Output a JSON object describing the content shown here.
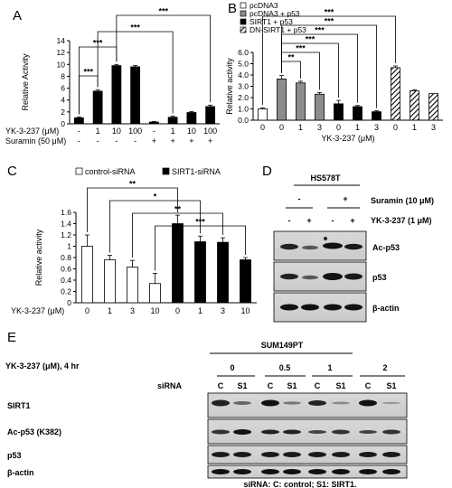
{
  "panels": {
    "A": {
      "letter": "A",
      "chart_data": {
        "type": "bar",
        "ylabel": "Relative Activity",
        "ylim": [
          0,
          14
        ],
        "yticks": [
          0,
          2,
          4,
          6,
          8,
          10,
          12,
          14
        ],
        "rows": [
          {
            "label": "YK-3-237 (μM)",
            "values": [
              "-",
              "1",
              "10",
              "100",
              "-",
              "1",
              "10",
              "100"
            ]
          },
          {
            "label": "Suramin (50 μM)",
            "values": [
              "-",
              "-",
              "-",
              "-",
              "+",
              "+",
              "+",
              "+"
            ]
          }
        ],
        "values": [
          1.0,
          5.5,
          9.8,
          9.6,
          0.3,
          1.1,
          1.9,
          2.9
        ],
        "errors": [
          0.15,
          0.25,
          0.2,
          0.2,
          0.08,
          0.2,
          0.15,
          0.25
        ],
        "significance": [
          "***",
          "***",
          "***",
          "***"
        ]
      }
    },
    "B": {
      "letter": "B",
      "chart_data": {
        "type": "bar",
        "ylabel": "Relative activity",
        "xlabel": "YK-3-237 (μM)",
        "ylim": [
          0,
          6.0
        ],
        "yticks": [
          "0.0",
          "1.0",
          "2.0",
          "3.0",
          "4.0",
          "5.0",
          "6.0"
        ],
        "categories": [
          "0",
          "0",
          "1",
          "3",
          "0",
          "1",
          "3",
          "0",
          "1",
          "3"
        ],
        "series": [
          {
            "name": "pcDNA3",
            "style": "white"
          },
          {
            "name": "pcDNA3 + p53",
            "style": "gray"
          },
          {
            "name": "SIRT1 + p53",
            "style": "black"
          },
          {
            "name": "DN-SIRT1 + p53",
            "style": "hatch"
          }
        ],
        "bar_series": [
          0,
          1,
          1,
          1,
          2,
          2,
          2,
          3,
          3,
          3
        ],
        "values": [
          1.0,
          3.65,
          3.3,
          2.3,
          1.45,
          1.2,
          0.75,
          4.65,
          2.6,
          2.35
        ],
        "errors": [
          0.1,
          0.3,
          0.15,
          0.15,
          0.3,
          0.1,
          0.08,
          0.15,
          0.1,
          0.0
        ],
        "significance": [
          "***",
          "***",
          "***",
          "***",
          "***",
          "**",
          "***"
        ]
      }
    },
    "C": {
      "letter": "C",
      "chart_data": {
        "type": "bar",
        "ylabel": "Relative activity",
        "xlabel": "YK-3-237 (μM)",
        "ylim": [
          0,
          1.6
        ],
        "yticks": [
          "0",
          "0.2",
          "0.4",
          "0.6",
          "0.8",
          "1",
          "1.2",
          "1.4",
          "1.6"
        ],
        "categories": [
          "0",
          "1",
          "3",
          "10",
          "0",
          "1",
          "3",
          "10"
        ],
        "series": [
          {
            "name": "control-siRNA",
            "style": "white"
          },
          {
            "name": "SIRT1-siRNA",
            "style": "black"
          }
        ],
        "bar_series": [
          0,
          0,
          0,
          0,
          1,
          1,
          1,
          1
        ],
        "values": [
          1.0,
          0.76,
          0.63,
          0.34,
          1.4,
          1.08,
          1.07,
          0.76
        ],
        "errors": [
          0.2,
          0.08,
          0.12,
          0.18,
          0.15,
          0.1,
          0.08,
          0.04
        ],
        "significance": [
          "**",
          "*",
          "**",
          "***"
        ]
      }
    },
    "D": {
      "letter": "D",
      "cell_line": "HS578T",
      "treatments": [
        {
          "label": "Suramin (10 μM)",
          "values": [
            "-",
            "+"
          ]
        },
        {
          "label": "YK-3-237 (1 μM)",
          "values": [
            "-",
            "+",
            "-",
            "+"
          ]
        }
      ],
      "blots": [
        "Ac-p53",
        "p53",
        "β-actin"
      ]
    },
    "E": {
      "letter": "E",
      "cell_line": "SUM149PT",
      "dose_label": "YK-3-237 (μM), 4 hr",
      "doses": [
        "0",
        "0.5",
        "1",
        "2"
      ],
      "sirna_label": "siRNA",
      "lanes": [
        "C",
        "S1",
        "C",
        "S1",
        "C",
        "S1",
        "C",
        "S1"
      ],
      "blots": [
        "SIRT1",
        "Ac-p53 (K382)",
        "p53",
        "β-actin"
      ],
      "footnote": "siRNA: C: control; S1: SIRT1."
    }
  }
}
